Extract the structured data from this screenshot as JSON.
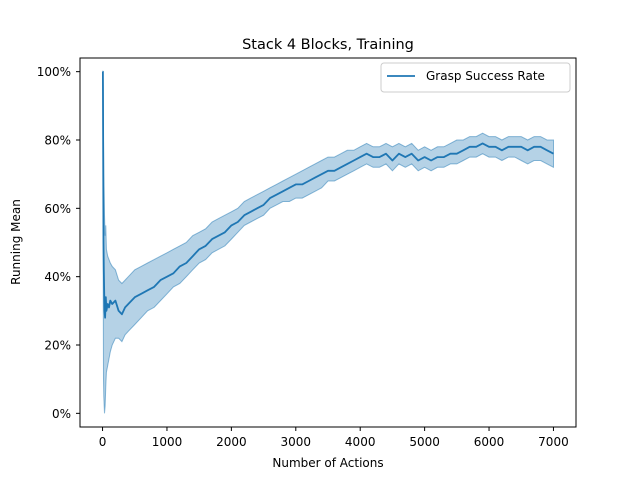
{
  "colors": {
    "line": "#1f77b4",
    "band": "#1f77b4",
    "axes": "#000000",
    "legend_border": "#cccccc"
  },
  "chart_data": {
    "type": "line",
    "title": "Stack 4 Blocks, Training",
    "xlabel": "Number of Actions",
    "ylabel": "Running Mean",
    "xlim": [
      -350,
      7350
    ],
    "ylim": [
      -4,
      104
    ],
    "x_ticks": [
      0,
      1000,
      2000,
      3000,
      4000,
      5000,
      6000,
      7000
    ],
    "x_tick_labels": [
      "0",
      "1000",
      "2000",
      "3000",
      "4000",
      "5000",
      "6000",
      "7000"
    ],
    "y_ticks": [
      0,
      20,
      40,
      60,
      80,
      100
    ],
    "y_tick_labels": [
      "0%",
      "20%",
      "40%",
      "60%",
      "80%",
      "100%"
    ],
    "grid": false,
    "legend": {
      "position": "top-right",
      "entries": [
        "Grasp Success Rate"
      ]
    },
    "series": [
      {
        "name": "Grasp Success Rate",
        "x": [
          0,
          5,
          10,
          15,
          20,
          30,
          40,
          50,
          60,
          80,
          100,
          120,
          150,
          200,
          250,
          300,
          350,
          400,
          500,
          600,
          700,
          800,
          900,
          1000,
          1100,
          1200,
          1300,
          1400,
          1500,
          1600,
          1700,
          1800,
          1900,
          2000,
          2100,
          2200,
          2300,
          2400,
          2500,
          2600,
          2700,
          2800,
          2900,
          3000,
          3100,
          3200,
          3300,
          3400,
          3500,
          3600,
          3700,
          3800,
          3900,
          4000,
          4100,
          4200,
          4300,
          4400,
          4500,
          4600,
          4700,
          4800,
          4900,
          5000,
          5100,
          5200,
          5300,
          5400,
          5500,
          5600,
          5700,
          5800,
          5900,
          6000,
          6100,
          6200,
          6300,
          6400,
          6500,
          6600,
          6700,
          6800,
          6900,
          7000
        ],
        "y": [
          100,
          100,
          75,
          50,
          42,
          30,
          28,
          34,
          30,
          32,
          31,
          33,
          32,
          33,
          30,
          29,
          31,
          32,
          34,
          35,
          36,
          37,
          39,
          40,
          41,
          43,
          44,
          46,
          48,
          49,
          51,
          52,
          53,
          55,
          56,
          58,
          59,
          60,
          61,
          63,
          64,
          65,
          66,
          67,
          67,
          68,
          69,
          70,
          71,
          71,
          72,
          73,
          74,
          75,
          76,
          75,
          75,
          76,
          74,
          76,
          75,
          76,
          74,
          75,
          74,
          75,
          75,
          76,
          76,
          77,
          78,
          78,
          79,
          78,
          78,
          77,
          78,
          78,
          78,
          77,
          78,
          78,
          77,
          76
        ],
        "lower": [
          100,
          100,
          40,
          10,
          5,
          0,
          2,
          8,
          12,
          14,
          16,
          18,
          20,
          22,
          22,
          21,
          23,
          24,
          26,
          28,
          30,
          31,
          33,
          35,
          37,
          38,
          40,
          42,
          44,
          45,
          47,
          48,
          49,
          51,
          53,
          55,
          56,
          57,
          58,
          60,
          61,
          62,
          62,
          63,
          63,
          64,
          65,
          66,
          68,
          68,
          69,
          70,
          71,
          72,
          73,
          72,
          72,
          73,
          71,
          73,
          72,
          73,
          71,
          72,
          71,
          72,
          72,
          73,
          73,
          74,
          75,
          75,
          76,
          75,
          75,
          74,
          75,
          75,
          74,
          73,
          74,
          74,
          73,
          72
        ],
        "upper": [
          100,
          100,
          95,
          80,
          70,
          58,
          52,
          55,
          48,
          46,
          45,
          44,
          43,
          42,
          39,
          38,
          39,
          40,
          42,
          43,
          44,
          45,
          46,
          47,
          48,
          49,
          50,
          52,
          53,
          54,
          56,
          57,
          58,
          59,
          60,
          62,
          63,
          64,
          65,
          66,
          67,
          68,
          69,
          70,
          71,
          72,
          73,
          74,
          75,
          75,
          76,
          77,
          77,
          78,
          79,
          78,
          78,
          79,
          78,
          79,
          78,
          79,
          77,
          78,
          77,
          78,
          78,
          79,
          80,
          80,
          81,
          81,
          82,
          81,
          81,
          80,
          81,
          81,
          81,
          80,
          81,
          81,
          80,
          80
        ]
      }
    ]
  }
}
